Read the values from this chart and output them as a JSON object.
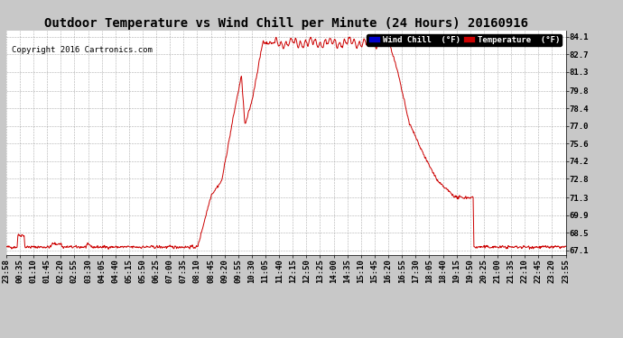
{
  "title": "Outdoor Temperature vs Wind Chill per Minute (24 Hours) 20160916",
  "copyright": "Copyright 2016 Cartronics.com",
  "legend_wind_chill": "Wind Chill  (°F)",
  "legend_temperature": "Temperature  (°F)",
  "yticks": [
    67.1,
    68.5,
    69.9,
    71.3,
    72.8,
    74.2,
    75.6,
    77.0,
    78.4,
    79.8,
    81.3,
    82.7,
    84.1
  ],
  "ylim": [
    66.7,
    84.6
  ],
  "background_color": "#c8c8c8",
  "plot_bg_color": "#ffffff",
  "grid_color": "#999999",
  "line_color": "#cc0000",
  "title_fontsize": 10,
  "tick_fontsize": 6.5,
  "copyright_fontsize": 6.5,
  "xtick_labels": [
    "23:58",
    "00:35",
    "01:10",
    "01:45",
    "02:20",
    "02:55",
    "03:30",
    "04:05",
    "04:40",
    "05:15",
    "05:50",
    "06:25",
    "07:00",
    "07:35",
    "08:10",
    "08:45",
    "09:20",
    "09:55",
    "10:30",
    "11:05",
    "11:40",
    "12:15",
    "12:50",
    "13:25",
    "14:00",
    "14:35",
    "15:10",
    "15:45",
    "16:20",
    "16:55",
    "17:30",
    "18:05",
    "18:40",
    "19:15",
    "19:50",
    "20:25",
    "21:00",
    "21:35",
    "22:10",
    "22:45",
    "23:20",
    "23:55"
  ]
}
